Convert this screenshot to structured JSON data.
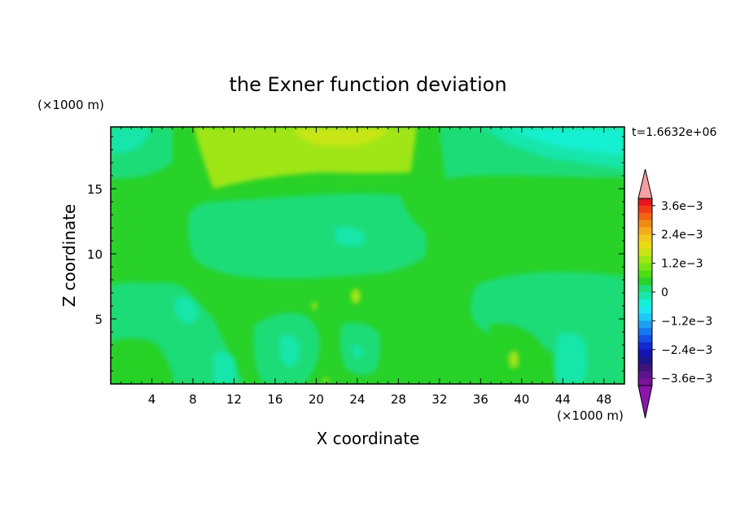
{
  "chart_data": {
    "type": "heatmap",
    "title": "the Exner function deviation",
    "xlabel": "X coordinate",
    "ylabel": "Z coordinate",
    "x_unit": "(×1000 m)",
    "y_unit": "(×1000 m)",
    "time_label": "t=1.6632e+06",
    "xlim": [
      0,
      50
    ],
    "ylim": [
      0,
      19.75
    ],
    "x_ticks": [
      4,
      8,
      12,
      16,
      20,
      24,
      28,
      32,
      36,
      40,
      44,
      48
    ],
    "y_ticks": [
      5,
      10,
      15
    ],
    "colorbar": {
      "labels": [
        {
          "value": 0.0036,
          "text": "3.6e−3"
        },
        {
          "value": 0.0024,
          "text": "2.4e−3"
        },
        {
          "value": 0.0012,
          "text": "1.2e−3"
        },
        {
          "value": 0,
          "text": "0"
        },
        {
          "value": -0.0012,
          "text": "−1.2e−3"
        },
        {
          "value": -0.0024,
          "text": "−2.4e−3"
        },
        {
          "value": -0.0036,
          "text": "−3.6e−3"
        }
      ],
      "levels": [
        0.0039,
        0.0036,
        0.0033,
        0.003,
        0.0027,
        0.0024,
        0.0021,
        0.0018,
        0.0015,
        0.0012,
        0.0009,
        0.0006,
        0.0003,
        0,
        -0.0003,
        -0.0006,
        -0.0009,
        -0.0012,
        -0.0015,
        -0.0018,
        -0.0021,
        -0.0024,
        -0.0027,
        -0.003,
        -0.0033,
        -0.0036,
        -0.0039
      ],
      "colors": [
        "#e8141e",
        "#f03c14",
        "#f06414",
        "#f08c14",
        "#f5aa1e",
        "#f5c81e",
        "#e6dc14",
        "#c8e614",
        "#a0e614",
        "#78e614",
        "#4bdc14",
        "#28d228",
        "#1edc78",
        "#19e6aa",
        "#14f0d2",
        "#1ee6f0",
        "#1ec8f5",
        "#1ea0f0",
        "#1478f0",
        "#1450e6",
        "#1428d2",
        "#1414b4",
        "#1e148c",
        "#3c1478",
        "#5a148c",
        "#78149b"
      ],
      "over_color": "#f5a0a0",
      "under_color": "#8c14aa"
    },
    "grid": false
  }
}
